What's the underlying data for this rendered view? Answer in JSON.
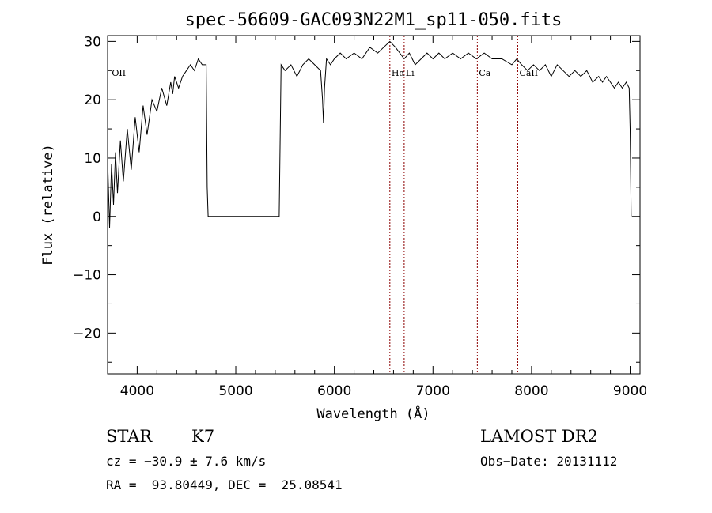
{
  "chart_data": {
    "type": "line",
    "title": "spec-56609-GAC093N22M1_sp11-050.fits",
    "xlabel": "Wavelength (Å)",
    "ylabel": "Flux (relative)",
    "xlim": [
      3700,
      9100
    ],
    "ylim": [
      -27,
      31
    ],
    "xticks": [
      4000,
      5000,
      6000,
      7000,
      8000,
      9000
    ],
    "yticks": [
      -20,
      -10,
      0,
      10,
      20,
      30
    ],
    "grid": false,
    "series": [
      {
        "x": [
          3700,
          3720,
          3740,
          3760,
          3780,
          3800,
          3830,
          3860,
          3900,
          3940,
          3980,
          4020,
          4060,
          4100,
          4150,
          4200,
          4250,
          4300,
          4340,
          4360,
          4380,
          4420,
          4460,
          4500,
          4540,
          4580,
          4620,
          4660,
          4700,
          4710,
          4720,
          5430,
          5440,
          5460,
          5500,
          5560,
          5620,
          5680,
          5740,
          5800,
          5860,
          5880,
          5890,
          5900,
          5920,
          5960,
          6000,
          6060,
          6120,
          6200,
          6280,
          6360,
          6440,
          6500,
          6563,
          6620,
          6708,
          6760,
          6820,
          6880,
          6940,
          7000,
          7060,
          7120,
          7200,
          7280,
          7360,
          7440,
          7520,
          7600,
          7700,
          7800,
          7850,
          7900,
          7960,
          8020,
          8080,
          8140,
          8200,
          8260,
          8320,
          8380,
          8440,
          8500,
          8560,
          8620,
          8680,
          8720,
          8760,
          8800,
          8840,
          8880,
          8920,
          8960,
          8990,
          9000,
          9010
        ],
        "y": [
          10,
          -2,
          9,
          2,
          11,
          4,
          13,
          6,
          15,
          8,
          17,
          11,
          19,
          14,
          20,
          18,
          22,
          19,
          23,
          21,
          24,
          22,
          24,
          25,
          26,
          25,
          27,
          26,
          26,
          5,
          0,
          0,
          0,
          26,
          25,
          26,
          24,
          26,
          27,
          26,
          25,
          20,
          16,
          22,
          27,
          26,
          27,
          28,
          27,
          28,
          27,
          29,
          28,
          29,
          30,
          29,
          27,
          28,
          26,
          27,
          28,
          27,
          28,
          27,
          28,
          27,
          28,
          27,
          28,
          27,
          27,
          26,
          27,
          26,
          25,
          26,
          25,
          26,
          24,
          26,
          25,
          24,
          25,
          24,
          25,
          23,
          24,
          23,
          24,
          23,
          22,
          23,
          22,
          23,
          22,
          15,
          0
        ]
      }
    ],
    "lines": [
      {
        "x": 3727,
        "label": "OII"
      },
      {
        "x": 6563,
        "label": "Hα"
      },
      {
        "x": 6708,
        "label": "Li"
      },
      {
        "x": 7450,
        "label": "Ca"
      },
      {
        "x": 7860,
        "label": "CaII"
      }
    ],
    "annotations": {
      "class": "STAR",
      "subclass": "K7",
      "cz": "cz = −30.9 ± 7.6 km/s",
      "radec": "RA =  93.80449, DEC =  25.08541",
      "survey": "LAMOST DR2",
      "obsdate": "Obs−Date: 20131112"
    },
    "colors": {
      "line": "#000000",
      "marker": "#8b0000"
    }
  }
}
